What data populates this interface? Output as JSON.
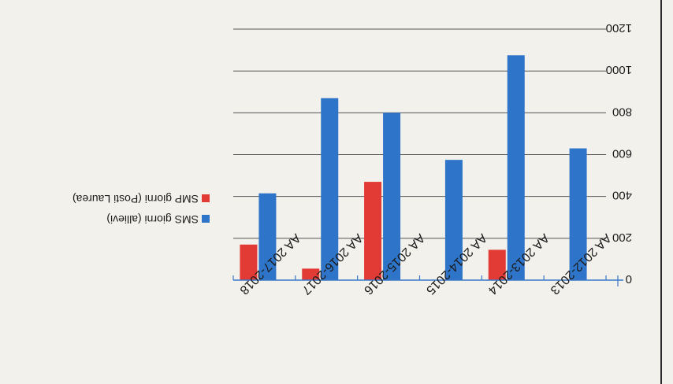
{
  "chart_data": {
    "type": "bar",
    "orientation": "rotated-180",
    "categories": [
      "AA 2012-2013",
      "AA 2013-2014",
      "AA 2014-2015",
      "AA 2015-2016",
      "AA 2016-2017",
      "AA 2017-2018"
    ],
    "series": [
      {
        "name": "SMS giorni (allievi)",
        "values": [
          630,
          1075,
          575,
          800,
          870,
          415
        ],
        "color": "#2e75c9"
      },
      {
        "name": "SMP giorni (Posti Laurea)",
        "values": [
          0,
          145,
          0,
          470,
          55,
          170
        ],
        "color": "#e23b35"
      }
    ],
    "ylim": [
      0,
      1200
    ],
    "yticks": [
      "0",
      "200",
      "400",
      "600",
      "800",
      "1000",
      "1200"
    ],
    "grid": true,
    "legend_position": "right"
  }
}
